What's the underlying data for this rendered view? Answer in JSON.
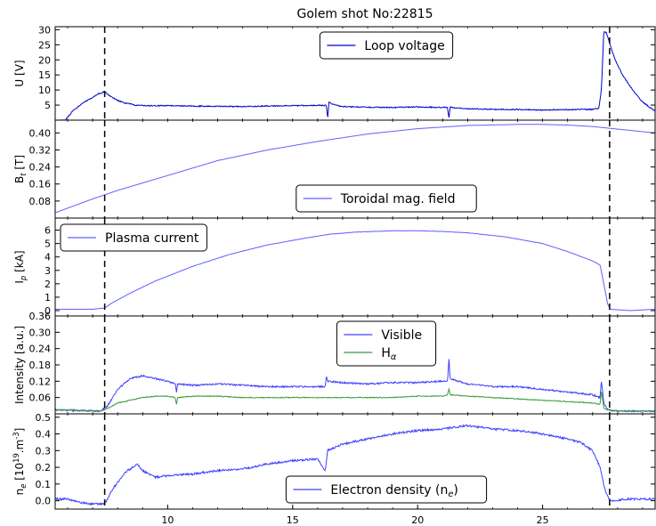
{
  "title": "Golem shot No:22815",
  "chart_data": [
    {
      "type": "line",
      "ylabel": "U [V]",
      "xlim": [
        5.5,
        29.5
      ],
      "ylim": [
        0,
        31
      ],
      "yticks": [
        5,
        10,
        15,
        20,
        25,
        30
      ],
      "ytick_labels": [
        "5",
        "10",
        "15",
        "20",
        "25",
        "30"
      ],
      "legend_position": "top-center",
      "vlines": [
        7.48,
        27.68
      ],
      "series": [
        {
          "name": "Loop voltage",
          "color": "#0000cc",
          "noise": 0.35,
          "x": [
            5.5,
            5.9,
            6.2,
            6.6,
            7.0,
            7.2,
            7.48,
            7.7,
            8.0,
            8.3,
            8.7,
            9.2,
            10.0,
            11.0,
            12.0,
            13.0,
            14.0,
            15.0,
            16.0,
            16.35,
            16.4,
            16.45,
            16.6,
            17.0,
            18.0,
            19.0,
            20.0,
            21.0,
            21.2,
            21.25,
            21.3,
            21.5,
            22.0,
            23.0,
            24.0,
            25.0,
            26.0,
            27.0,
            27.25,
            27.35,
            27.45,
            27.55,
            27.7,
            27.9,
            28.2,
            28.6,
            29.0,
            29.5
          ],
          "y": [
            0,
            0,
            3.0,
            5.6,
            7.6,
            8.6,
            9.5,
            8.0,
            6.5,
            5.7,
            5.0,
            4.8,
            4.8,
            4.7,
            4.6,
            4.5,
            4.7,
            4.8,
            4.9,
            4.9,
            0.5,
            6.0,
            5.2,
            4.5,
            4.3,
            4.2,
            4.4,
            4.2,
            4.2,
            0.5,
            4.3,
            4.0,
            3.8,
            3.6,
            3.5,
            3.4,
            3.5,
            3.6,
            4.0,
            10.0,
            29.5,
            29.0,
            25.0,
            20.0,
            15.0,
            10.0,
            6.0,
            3.0
          ]
        }
      ]
    },
    {
      "type": "line",
      "ylabel": "B_t [T]",
      "xlim": [
        5.5,
        29.5
      ],
      "ylim": [
        0,
        0.46
      ],
      "yticks": [
        0.08,
        0.16,
        0.24,
        0.32,
        0.4
      ],
      "ytick_labels": [
        "0.08",
        "0.16",
        "0.24",
        "0.32",
        "0.40"
      ],
      "legend_position": "bottom-center",
      "vlines": [
        7.48,
        27.68
      ],
      "series": [
        {
          "name": "Toroidal mag. field",
          "color": "#6060ff",
          "noise": 0,
          "x": [
            5.5,
            7.0,
            8.0,
            10.0,
            12.0,
            14.0,
            16.0,
            18.0,
            20.0,
            22.0,
            24.0,
            25.0,
            26.0,
            27.0,
            28.0,
            29.5
          ],
          "y": [
            0.025,
            0.09,
            0.13,
            0.2,
            0.27,
            0.32,
            0.36,
            0.395,
            0.42,
            0.435,
            0.44,
            0.44,
            0.437,
            0.43,
            0.418,
            0.4
          ]
        }
      ]
    },
    {
      "type": "line",
      "ylabel": "I_p [kA]",
      "xlim": [
        5.5,
        29.5
      ],
      "ylim": [
        -0.4,
        6.9
      ],
      "yticks": [
        0,
        1,
        2,
        3,
        4,
        5,
        6
      ],
      "ytick_labels": [
        "0",
        "1",
        "2",
        "3",
        "4",
        "5",
        "6"
      ],
      "legend_position": "top-left",
      "vlines": [
        7.48,
        27.68
      ],
      "series": [
        {
          "name": "Plasma current",
          "color": "#6060ff",
          "noise": 0.02,
          "x": [
            5.5,
            7.0,
            7.48,
            7.8,
            8.5,
            9.5,
            11.0,
            12.5,
            14.0,
            15.5,
            16.5,
            17.5,
            19.0,
            20.0,
            21.0,
            22.0,
            23.5,
            25.0,
            26.0,
            27.0,
            27.3,
            27.5,
            27.6,
            27.7,
            28.5,
            29.5
          ],
          "y": [
            0.1,
            0.1,
            0.2,
            0.6,
            1.3,
            2.2,
            3.3,
            4.2,
            4.9,
            5.4,
            5.7,
            5.85,
            5.95,
            5.95,
            5.9,
            5.8,
            5.5,
            5.0,
            4.4,
            3.7,
            3.4,
            1.5,
            0.5,
            0.1,
            0.0,
            0.1
          ]
        }
      ]
    },
    {
      "type": "line",
      "ylabel": "Intensity [a.u.]",
      "xlim": [
        5.5,
        29.5
      ],
      "ylim": [
        0,
        0.36
      ],
      "yticks": [
        0.06,
        0.12,
        0.18,
        0.24,
        0.3,
        0.36
      ],
      "ytick_labels": [
        "0.06",
        "0.12",
        "0.18",
        "0.24",
        "0.30",
        "0.36"
      ],
      "legend_position": "top-center",
      "vlines": [
        7.48,
        27.68
      ],
      "series": [
        {
          "name": "Visible",
          "color": "#4040ff",
          "noise": 0.006,
          "x": [
            5.5,
            7.3,
            7.6,
            8.0,
            8.5,
            9.0,
            9.5,
            10.0,
            10.3,
            10.35,
            10.4,
            11.0,
            12.0,
            13.0,
            14.0,
            15.0,
            16.0,
            16.3,
            16.35,
            16.4,
            17.0,
            18.0,
            19.0,
            20.0,
            21.0,
            21.2,
            21.25,
            21.3,
            22.0,
            23.0,
            24.0,
            25.0,
            26.0,
            27.0,
            27.3,
            27.35,
            27.45,
            27.6,
            28.0,
            29.5
          ],
          "y": [
            0.015,
            0.01,
            0.03,
            0.09,
            0.13,
            0.14,
            0.13,
            0.12,
            0.11,
            0.08,
            0.11,
            0.105,
            0.11,
            0.105,
            0.1,
            0.1,
            0.1,
            0.1,
            0.14,
            0.12,
            0.115,
            0.11,
            0.115,
            0.115,
            0.12,
            0.12,
            0.21,
            0.13,
            0.11,
            0.1,
            0.1,
            0.09,
            0.08,
            0.07,
            0.06,
            0.125,
            0.04,
            0.015,
            0.01,
            0.01
          ]
        },
        {
          "name": "H_alpha",
          "color": "#3a9a3a",
          "noise": 0.003,
          "x": [
            5.5,
            7.3,
            7.6,
            8.0,
            8.5,
            9.0,
            9.5,
            10.0,
            10.3,
            10.35,
            10.4,
            11.0,
            12.0,
            13.0,
            14.0,
            15.0,
            16.0,
            17.0,
            18.0,
            19.0,
            20.0,
            21.0,
            21.2,
            21.25,
            21.3,
            22.0,
            23.0,
            24.0,
            25.0,
            26.0,
            27.0,
            27.3,
            27.35,
            27.45,
            27.6,
            28.0,
            29.5
          ],
          "y": [
            0.015,
            0.01,
            0.02,
            0.04,
            0.05,
            0.06,
            0.065,
            0.065,
            0.06,
            0.035,
            0.06,
            0.065,
            0.065,
            0.06,
            0.06,
            0.06,
            0.06,
            0.06,
            0.06,
            0.06,
            0.065,
            0.065,
            0.07,
            0.095,
            0.07,
            0.065,
            0.06,
            0.055,
            0.05,
            0.045,
            0.04,
            0.035,
            0.085,
            0.02,
            0.015,
            0.01,
            0.01
          ]
        }
      ]
    },
    {
      "type": "line",
      "ylabel": "n_e [10^19.m^-3]",
      "xaxis_ticks": true,
      "xlim": [
        5.5,
        29.5
      ],
      "ylim": [
        -0.05,
        0.52
      ],
      "yticks": [
        0.0,
        0.1,
        0.2,
        0.3,
        0.4,
        0.5
      ],
      "ytick_labels": [
        "0.0",
        "0.1",
        "0.2",
        "0.3",
        "0.4",
        "0.5"
      ],
      "xticks": [
        10,
        15,
        20,
        25
      ],
      "xtick_labels": [
        "10",
        "15",
        "20",
        "25"
      ],
      "legend_position": "bottom-center",
      "vlines": [
        7.48,
        27.68
      ],
      "series": [
        {
          "name": "Electron density (n_e)",
          "color": "#4040ff",
          "noise": 0.012,
          "x": [
            5.5,
            6.0,
            6.5,
            7.0,
            7.48,
            7.8,
            8.3,
            8.8,
            9.0,
            9.5,
            10.0,
            11.0,
            12.0,
            13.0,
            14.0,
            15.0,
            16.0,
            16.3,
            16.4,
            17.0,
            18.0,
            19.0,
            20.0,
            21.0,
            22.0,
            23.0,
            24.0,
            25.0,
            26.0,
            26.5,
            27.0,
            27.3,
            27.5,
            27.7,
            28.5,
            29.5
          ],
          "y": [
            0.01,
            0.01,
            -0.01,
            -0.02,
            -0.02,
            0.07,
            0.17,
            0.22,
            0.18,
            0.14,
            0.15,
            0.16,
            0.18,
            0.19,
            0.22,
            0.24,
            0.25,
            0.18,
            0.3,
            0.34,
            0.37,
            0.4,
            0.42,
            0.43,
            0.45,
            0.43,
            0.42,
            0.4,
            0.37,
            0.35,
            0.3,
            0.2,
            0.06,
            0.0,
            0.01,
            0.01
          ]
        }
      ]
    }
  ]
}
